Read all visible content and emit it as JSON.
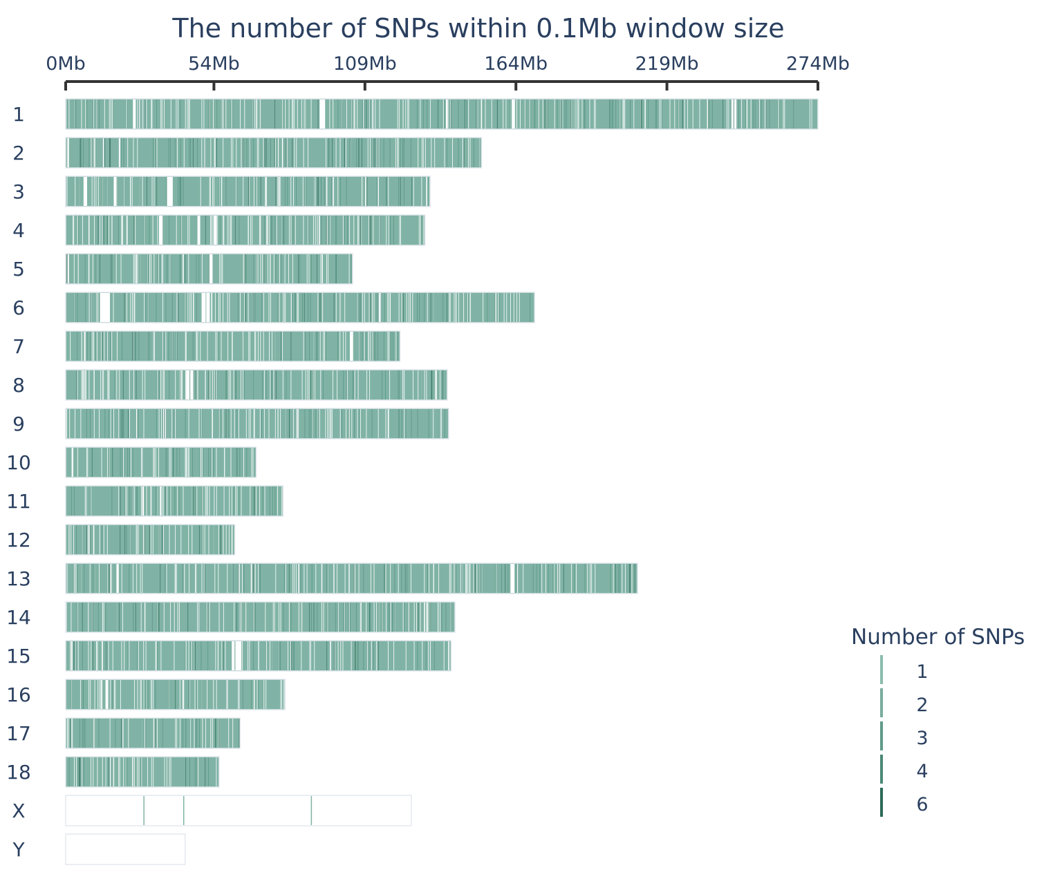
{
  "chart_data": {
    "type": "heatmap",
    "title": "The number of SNPs within 0.1Mb window size",
    "x_axis": {
      "unit": "Mb",
      "range": [
        0,
        274
      ],
      "ticks": [
        0,
        54,
        109,
        164,
        219,
        274
      ],
      "tick_labels": [
        "0Mb",
        "54Mb",
        "109Mb",
        "164Mb",
        "219Mb",
        "274Mb"
      ],
      "position": "top"
    },
    "window_size_mb": 0.1,
    "chromosomes": [
      {
        "name": "1",
        "length_mb": 274,
        "gaps_mb": [
          [
            24.5,
            25.5
          ],
          [
            92.5,
            94.5
          ],
          [
            138.5,
            139.5
          ],
          [
            162.5,
            163.5
          ],
          [
            242.5,
            244.5
          ]
        ]
      },
      {
        "name": "2",
        "length_mb": 151.5,
        "gaps_mb": [
          [
            0.4,
            1.2
          ]
        ]
      },
      {
        "name": "3",
        "length_mb": 132.8,
        "gaps_mb": [
          [
            6.5,
            7.8
          ],
          [
            17.5,
            18.5
          ],
          [
            37,
            39
          ]
        ]
      },
      {
        "name": "4",
        "length_mb": 130.9,
        "gaps_mb": [
          [
            34,
            35.5
          ],
          [
            48,
            49
          ],
          [
            53.5,
            55
          ]
        ]
      },
      {
        "name": "5",
        "length_mb": 104.5,
        "gaps_mb": [
          [
            0.3,
            1.2
          ],
          [
            52,
            53.5
          ]
        ]
      },
      {
        "name": "6",
        "length_mb": 170.8,
        "gaps_mb": [
          [
            12.5,
            16
          ],
          [
            49.5,
            52.5
          ]
        ]
      },
      {
        "name": "7",
        "length_mb": 121.8,
        "gaps_mb": [
          [
            103.5,
            104.5
          ]
        ]
      },
      {
        "name": "8",
        "length_mb": 139,
        "gaps_mb": [
          [
            41.5,
            42.5
          ],
          [
            44,
            46.5
          ]
        ]
      },
      {
        "name": "9",
        "length_mb": 139.5,
        "gaps_mb": [
          [
            35.5,
            36.5
          ]
        ]
      },
      {
        "name": "10",
        "length_mb": 69.4,
        "gaps_mb": []
      },
      {
        "name": "11",
        "length_mb": 79.2,
        "gaps_mb": [
          [
            27.5,
            28.5
          ]
        ]
      },
      {
        "name": "12",
        "length_mb": 61.6,
        "gaps_mb": []
      },
      {
        "name": "13",
        "length_mb": 208.3,
        "gaps_mb": [
          [
            18.5,
            19.5
          ],
          [
            162,
            163.5
          ]
        ]
      },
      {
        "name": "14",
        "length_mb": 141.8,
        "gaps_mb": []
      },
      {
        "name": "15",
        "length_mb": 140.4,
        "gaps_mb": [
          [
            60.5,
            61.5
          ],
          [
            61.8,
            64
          ]
        ]
      },
      {
        "name": "16",
        "length_mb": 79.9,
        "gaps_mb": [
          [
            14.5,
            15.5
          ]
        ]
      },
      {
        "name": "17",
        "length_mb": 63.5,
        "gaps_mb": []
      },
      {
        "name": "18",
        "length_mb": 55.9,
        "gaps_mb": []
      },
      {
        "name": "X",
        "length_mb": 125.9,
        "marks_mb": [
          28.5,
          43,
          89.5
        ]
      },
      {
        "name": "Y",
        "length_mb": 43.5,
        "marks_mb": []
      }
    ],
    "legend": {
      "title": "Number of SNPs",
      "position": "bottom-right",
      "entries": [
        {
          "label": "1",
          "color": "#8bbcae"
        },
        {
          "label": "2",
          "color": "#78ac9d"
        },
        {
          "label": "3",
          "color": "#5f9a8a"
        },
        {
          "label": "4",
          "color": "#4a8877"
        },
        {
          "label": "6",
          "color": "#2c6a58"
        }
      ]
    },
    "colors": {
      "base": "#80b3a5",
      "background": "#ffffff",
      "outline": "#e4e8ee",
      "axis": "#333333",
      "text": "#2a3f5f"
    }
  }
}
